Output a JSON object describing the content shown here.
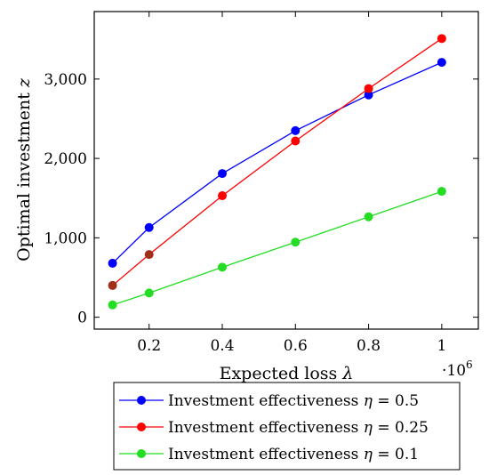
{
  "chart_data": {
    "type": "line",
    "xlabel_text": "Expected loss ",
    "xlabel_symbol": "λ",
    "ylabel_text": "Optimal investment ",
    "ylabel_symbol": "z",
    "x_scale_base": "·10",
    "x_scale_exp": "6",
    "xlim": [
      0.05,
      1.1
    ],
    "ylim": [
      -150,
      3850
    ],
    "x_ticks": [
      0.2,
      0.4,
      0.6,
      0.8,
      1.0
    ],
    "x_tick_labels": [
      "0.2",
      "0.4",
      "0.6",
      "0.8",
      "1"
    ],
    "y_ticks": [
      0,
      1000,
      2000,
      3000
    ],
    "y_tick_labels": [
      "0",
      "1,000",
      "2,000",
      "3,000"
    ],
    "x": [
      0.1,
      0.2,
      0.4,
      0.6,
      0.8,
      1.0
    ],
    "series": [
      {
        "legend_prefix": "Investment effectiveness ",
        "legend_symbol": "η",
        "legend_value": " = 0.5",
        "color": "#0000ff",
        "values": [
          680,
          1130,
          1810,
          2350,
          2800,
          3210
        ]
      },
      {
        "legend_prefix": "Investment effectiveness ",
        "legend_symbol": "η",
        "legend_value": " = 0.25",
        "color": "#ff0000",
        "marker_color": "#a0301a",
        "values": [
          400,
          790,
          1530,
          2220,
          2880,
          3510
        ]
      },
      {
        "legend_prefix": "Investment effectiveness ",
        "legend_symbol": "η",
        "legend_value": " = 0.1",
        "color": "#22dd22",
        "values": [
          155,
          305,
          630,
          945,
          1265,
          1585
        ]
      }
    ],
    "grid": false,
    "legend_position": "bottom"
  }
}
